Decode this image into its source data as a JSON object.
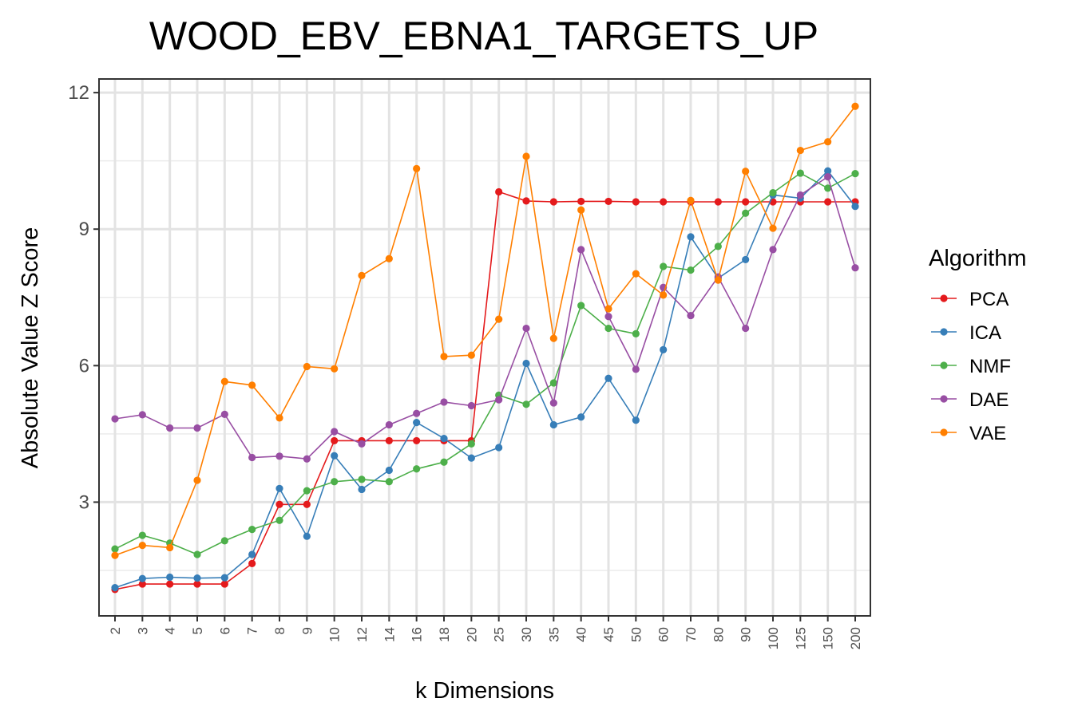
{
  "chart_data": {
    "type": "line",
    "title": "WOOD_EBV_EBNA1_TARGETS_UP",
    "xlabel": "k Dimensions",
    "ylabel": "Absolute Value Z Score",
    "categories": [
      "2",
      "3",
      "4",
      "5",
      "6",
      "7",
      "8",
      "9",
      "10",
      "12",
      "14",
      "16",
      "18",
      "20",
      "25",
      "30",
      "35",
      "40",
      "45",
      "50",
      "60",
      "70",
      "80",
      "90",
      "100",
      "125",
      "150",
      "200"
    ],
    "ylim": [
      0.5,
      12.3
    ],
    "yticks": [
      3,
      6,
      9,
      12
    ],
    "grid": true,
    "legend": {
      "title": "Algorithm",
      "position": "right"
    },
    "series": [
      {
        "name": "PCA",
        "color": "#e41a1c",
        "values": [
          1.08,
          1.2,
          1.2,
          1.2,
          1.2,
          1.65,
          2.95,
          2.95,
          4.35,
          4.35,
          4.35,
          4.35,
          4.35,
          4.35,
          9.82,
          9.62,
          9.6,
          9.61,
          9.61,
          9.6,
          9.6,
          9.6,
          9.6,
          9.6,
          9.6,
          9.6,
          9.6,
          9.6
        ]
      },
      {
        "name": "ICA",
        "color": "#377eb8",
        "values": [
          1.12,
          1.32,
          1.35,
          1.33,
          1.34,
          1.85,
          3.3,
          2.25,
          4.02,
          3.28,
          3.7,
          4.75,
          4.4,
          3.97,
          4.2,
          6.05,
          4.7,
          4.87,
          5.72,
          4.8,
          6.35,
          8.83,
          7.92,
          8.33,
          9.75,
          9.68,
          10.28,
          9.5
        ]
      },
      {
        "name": "NMF",
        "color": "#4daf4a",
        "values": [
          1.97,
          2.27,
          2.1,
          1.85,
          2.15,
          2.4,
          2.6,
          3.25,
          3.45,
          3.5,
          3.45,
          3.73,
          3.88,
          4.28,
          5.35,
          5.15,
          5.62,
          7.32,
          6.82,
          6.7,
          8.18,
          8.1,
          8.62,
          9.35,
          9.8,
          10.23,
          9.9,
          10.22
        ]
      },
      {
        "name": "DAE",
        "color": "#984ea3",
        "values": [
          4.83,
          4.92,
          4.63,
          4.63,
          4.93,
          3.98,
          4.01,
          3.95,
          4.55,
          4.28,
          4.7,
          4.95,
          5.2,
          5.12,
          5.25,
          6.82,
          5.18,
          8.55,
          7.08,
          5.92,
          7.72,
          7.1,
          7.95,
          6.82,
          8.55,
          9.75,
          10.15,
          8.15
        ]
      },
      {
        "name": "VAE",
        "color": "#ff7f00",
        "values": [
          1.83,
          2.05,
          2.0,
          3.48,
          5.65,
          5.57,
          4.85,
          5.98,
          5.93,
          7.98,
          8.35,
          10.33,
          6.2,
          6.23,
          7.02,
          10.6,
          6.6,
          9.42,
          7.25,
          8.02,
          7.55,
          9.63,
          7.88,
          10.27,
          9.02,
          10.73,
          10.92,
          11.7
        ]
      }
    ]
  }
}
